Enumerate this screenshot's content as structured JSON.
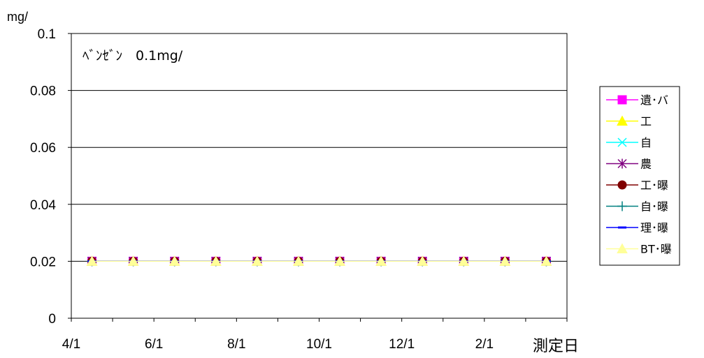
{
  "chart_data": {
    "type": "line",
    "y_unit": "mg/",
    "annotation": "ﾍﾞﾝｾﾞﾝ　0.1mg/",
    "xlabel": "測定日",
    "ylim": [
      0,
      0.1
    ],
    "y_ticks": [
      "0",
      "0.02",
      "0.04",
      "0.06",
      "0.08",
      "0.1"
    ],
    "x_tick_labels": [
      "4/1",
      "6/1",
      "8/1",
      "10/1",
      "12/1",
      "2/1"
    ],
    "x": [
      "4/1",
      "5/1",
      "6/1",
      "7/1",
      "8/1",
      "9/1",
      "10/1",
      "11/1",
      "12/1",
      "1/1",
      "2/1",
      "3/1"
    ],
    "grid": true,
    "legend_position": "right",
    "series": [
      {
        "name": "遺･バ",
        "color": "#ff00ff",
        "marker": "square",
        "values": [
          0.02,
          0.02,
          0.02,
          0.02,
          0.02,
          0.02,
          0.02,
          0.02,
          0.02,
          0.02,
          0.02,
          0.02
        ]
      },
      {
        "name": "工",
        "color": "#ffff00",
        "marker": "triangle",
        "values": [
          0.02,
          0.02,
          0.02,
          0.02,
          0.02,
          0.02,
          0.02,
          0.02,
          0.02,
          0.02,
          0.02,
          0.02
        ]
      },
      {
        "name": "自",
        "color": "#00ffff",
        "marker": "x",
        "values": [
          0.02,
          0.02,
          0.02,
          0.02,
          0.02,
          0.02,
          0.02,
          0.02,
          0.02,
          0.02,
          0.02,
          0.02
        ]
      },
      {
        "name": "農",
        "color": "#800080",
        "marker": "star",
        "values": [
          0.02,
          0.02,
          0.02,
          0.02,
          0.02,
          0.02,
          0.02,
          0.02,
          0.02,
          0.02,
          0.02,
          0.02
        ]
      },
      {
        "name": "工･曝",
        "color": "#800000",
        "marker": "circle",
        "values": [
          0.02,
          0.02,
          0.02,
          0.02,
          0.02,
          0.02,
          0.02,
          0.02,
          0.02,
          0.02,
          0.02,
          0.02
        ]
      },
      {
        "name": "自･曝",
        "color": "#008080",
        "marker": "plus",
        "values": [
          0.02,
          0.02,
          0.02,
          0.02,
          0.02,
          0.02,
          0.02,
          0.02,
          0.02,
          0.02,
          0.02,
          0.02
        ]
      },
      {
        "name": "理･曝",
        "color": "#0000ff",
        "marker": "dash",
        "values": [
          0.02,
          0.02,
          0.02,
          0.02,
          0.02,
          0.02,
          0.02,
          0.02,
          0.02,
          0.02,
          0.02,
          0.02
        ]
      },
      {
        "name": "BT･曝",
        "color": "#ffff99",
        "marker": "triangle",
        "values": [
          0.02,
          0.02,
          0.02,
          0.02,
          0.02,
          0.02,
          0.02,
          0.02,
          0.02,
          0.02,
          0.02,
          0.02
        ]
      }
    ]
  }
}
